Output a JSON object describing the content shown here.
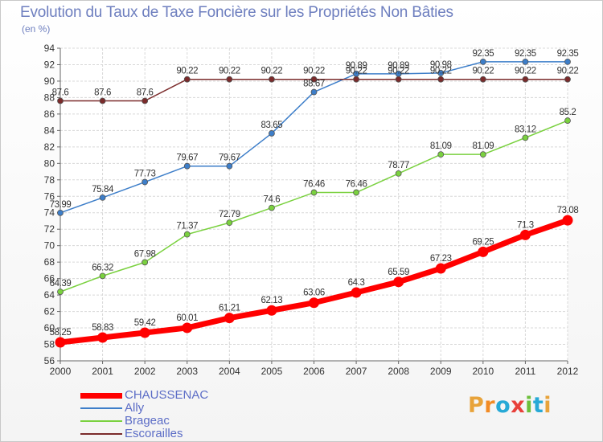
{
  "header": {
    "title": "Evolution du Taux de Taxe Foncière sur les Propriétés Non Bâties",
    "unit": "(en %)"
  },
  "logo": {
    "text": "Proxiti",
    "letters": [
      "P",
      "r",
      "o",
      "x",
      "i",
      "t",
      "i"
    ],
    "colors": [
      "#e8a33a",
      "#f28b24",
      "#27a9d6",
      "#e8403a",
      "#6cbf3a",
      "#27a9d6",
      "#e8a33a"
    ]
  },
  "chart_data": {
    "type": "line",
    "title": "Evolution du Taux de Taxe Foncière sur les Propriétés Non Bâties",
    "ylabel": "(en %)",
    "xlabel": "",
    "x": [
      "2000",
      "2001",
      "2002",
      "2003",
      "2004",
      "2005",
      "2006",
      "2007",
      "2008",
      "2009",
      "2010",
      "2011",
      "2012"
    ],
    "ylim": [
      56,
      94
    ],
    "yticks": [
      56,
      58,
      60,
      62,
      64,
      66,
      68,
      70,
      72,
      74,
      76,
      78,
      80,
      82,
      84,
      86,
      88,
      90,
      92,
      94
    ],
    "grid": true,
    "legend_position": "bottom-left",
    "series": [
      {
        "name": "CHAUSSENAC",
        "color": "#ff0000",
        "values": [
          58.25,
          58.83,
          59.42,
          60.01,
          61.21,
          62.13,
          63.06,
          64.3,
          65.59,
          67.23,
          69.25,
          71.3,
          73.08
        ],
        "labels": [
          "58.25",
          "58.83",
          "59.42",
          "60.01",
          "61.21",
          "62.13",
          "63.06",
          "64.3",
          "65.59",
          "67.23",
          "69.25",
          "71.3",
          "73.08"
        ]
      },
      {
        "name": "Ally",
        "color": "#3d7ec9",
        "values": [
          73.99,
          75.84,
          77.73,
          79.67,
          79.67,
          83.65,
          88.67,
          90.89,
          90.89,
          90.98,
          92.35,
          92.35,
          92.35
        ],
        "labels": [
          "73.99",
          "75.84",
          "77.73",
          "79.67",
          "79.67",
          "83.65",
          "88.67",
          "90.89",
          "90.89",
          "90.98",
          "92.35",
          "92.35",
          "92.35"
        ]
      },
      {
        "name": "Brageac",
        "color": "#7ad13f",
        "values": [
          64.39,
          66.32,
          67.98,
          71.37,
          72.79,
          74.6,
          76.46,
          76.46,
          78.77,
          81.09,
          81.09,
          83.12,
          85.2
        ],
        "labels": [
          "64.39",
          "66.32",
          "67.98",
          "71.37",
          "72.79",
          "74.6",
          "76.46",
          "76.46",
          "78.77",
          "81.09",
          "81.09",
          "83.12",
          "85.2"
        ]
      },
      {
        "name": "Escorailles",
        "color": "#7b2b2b",
        "values": [
          87.6,
          87.6,
          87.6,
          90.22,
          90.22,
          90.22,
          90.22,
          90.22,
          90.22,
          90.22,
          90.22,
          90.22,
          90.22
        ],
        "labels": [
          "87.6",
          "87.6",
          "87.6",
          "90.22",
          "90.22",
          "90.22",
          "90.22",
          "90.22",
          "90.22",
          "90.22",
          "90.22",
          "90.22",
          "90.22"
        ]
      }
    ]
  }
}
